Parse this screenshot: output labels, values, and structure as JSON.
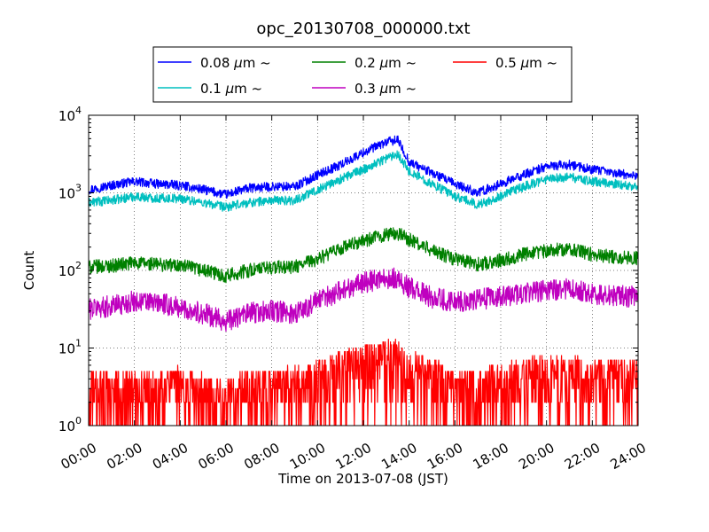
{
  "chart_data": {
    "type": "line",
    "title": "opc_20130708_000000.txt",
    "xlabel": "Time on 2013-07-08 (JST)",
    "ylabel": "Count",
    "y_scale": "log",
    "xlim": [
      "00:00",
      "24:00"
    ],
    "ylim": [
      1,
      10000
    ],
    "grid": true,
    "legend_placement": "top-center (above plot, 3 columns)",
    "x_tick_labels": [
      "00:00",
      "02:00",
      "04:00",
      "06:00",
      "08:00",
      "10:00",
      "12:00",
      "14:00",
      "16:00",
      "18:00",
      "20:00",
      "22:00",
      "24:00"
    ],
    "y_tick_labels": [
      {
        "base": "10",
        "exp": "0",
        "value": 1
      },
      {
        "base": "10",
        "exp": "1",
        "value": 10
      },
      {
        "base": "10",
        "exp": "2",
        "value": 100
      },
      {
        "base": "10",
        "exp": "3",
        "value": 1000
      },
      {
        "base": "10",
        "exp": "4",
        "value": 10000
      }
    ],
    "x_hours": [
      0,
      1,
      2,
      3,
      4,
      5,
      6,
      7,
      8,
      9,
      10,
      11,
      12,
      13,
      13.5,
      14,
      15,
      16,
      17,
      18,
      19,
      20,
      21,
      22,
      23,
      24
    ],
    "series": [
      {
        "label_prefix": "0.08",
        "unit_symbol": "μ",
        "unit_rest": "m",
        "label_suffix": "~",
        "color": "#0000ff",
        "values": [
          1100,
          1250,
          1400,
          1300,
          1250,
          1100,
          950,
          1150,
          1200,
          1200,
          1700,
          2300,
          3300,
          4500,
          4800,
          2500,
          1800,
          1300,
          1000,
          1300,
          1700,
          2200,
          2300,
          2000,
          1800,
          1650
        ]
      },
      {
        "label_prefix": "0.1",
        "unit_symbol": "μ",
        "unit_rest": "m",
        "label_suffix": "~",
        "color": "#00bfbf",
        "values": [
          750,
          800,
          900,
          850,
          850,
          750,
          650,
          750,
          800,
          800,
          1100,
          1500,
          2000,
          2800,
          3200,
          1900,
          1300,
          900,
          700,
          900,
          1200,
          1500,
          1600,
          1400,
          1300,
          1200
        ]
      },
      {
        "label_prefix": "0.2",
        "unit_symbol": "μ",
        "unit_rest": "m",
        "label_suffix": "~",
        "color": "#008000",
        "values": [
          110,
          115,
          125,
          120,
          115,
          100,
          85,
          100,
          110,
          110,
          140,
          190,
          240,
          290,
          300,
          250,
          180,
          140,
          120,
          135,
          160,
          180,
          190,
          160,
          150,
          145
        ]
      },
      {
        "label_prefix": "0.3",
        "unit_symbol": "μ",
        "unit_rest": "m",
        "label_suffix": "~",
        "color": "#bf00bf",
        "values": [
          32,
          35,
          40,
          38,
          33,
          28,
          22,
          28,
          30,
          28,
          40,
          55,
          70,
          80,
          78,
          60,
          45,
          40,
          42,
          45,
          50,
          55,
          58,
          50,
          48,
          45
        ]
      },
      {
        "label_prefix": "0.5",
        "unit_symbol": "μ",
        "unit_rest": "m",
        "label_suffix": "~",
        "color": "#ff0000",
        "values": [
          3,
          3,
          3,
          3,
          3,
          2.5,
          2,
          3,
          3,
          3,
          4,
          5,
          6,
          7,
          7,
          5,
          4,
          3,
          3,
          3.5,
          4,
          4.5,
          4.5,
          4,
          4,
          4
        ]
      }
    ]
  }
}
